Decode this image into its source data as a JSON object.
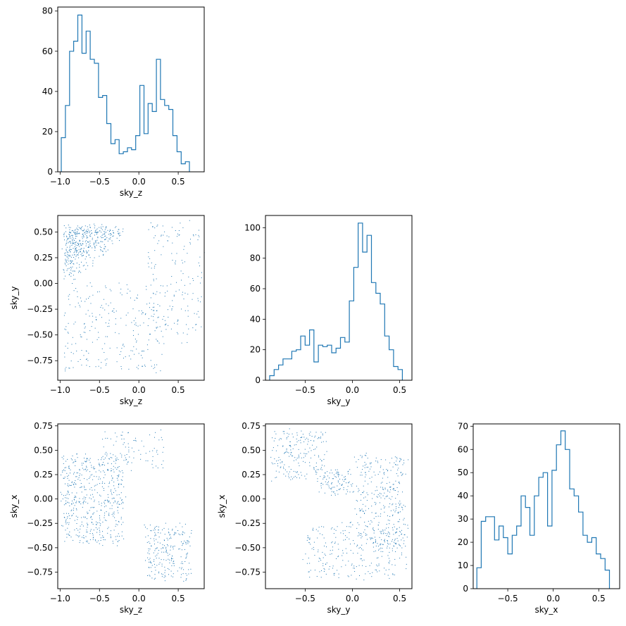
{
  "chart_data": [
    {
      "type": "histogram",
      "panel": "hist-sky-z",
      "xlabel": "sky_z",
      "xlim": [
        -1.03,
        0.83
      ],
      "ylim": [
        0,
        82
      ],
      "xticks": [
        -1.0,
        -0.5,
        0.0,
        0.5
      ],
      "xtick_labels": [
        "−1.0",
        "−0.5",
        "0.0",
        "0.5"
      ],
      "yticks": [
        0,
        20,
        40,
        60,
        80
      ],
      "ytick_labels": [
        "0",
        "20",
        "40",
        "60",
        "80"
      ],
      "bin_start": -0.985,
      "bin_width": 0.0525,
      "counts": [
        17,
        33,
        60,
        65,
        78,
        59,
        70,
        56,
        54,
        37,
        38,
        24,
        14,
        16,
        9,
        10,
        12,
        11,
        18,
        43,
        19,
        34,
        30,
        56,
        36,
        33,
        31,
        18,
        10,
        4,
        5
      ]
    },
    {
      "type": "histogram",
      "panel": "hist-sky-y",
      "xlabel": "sky_y",
      "xlim": [
        -0.92,
        0.63
      ],
      "ylim": [
        0,
        108
      ],
      "xticks": [
        -0.5,
        0.0,
        0.5
      ],
      "xtick_labels": [
        "−0.5",
        "0.0",
        "0.5"
      ],
      "yticks": [
        0,
        20,
        40,
        60,
        80,
        100
      ],
      "ytick_labels": [
        "0",
        "20",
        "40",
        "60",
        "80",
        "100"
      ],
      "bin_start": -0.875,
      "bin_width": 0.0468,
      "counts": [
        3,
        7,
        10,
        14,
        14,
        19,
        20,
        29,
        23,
        33,
        12,
        23,
        22,
        23,
        18,
        21,
        28,
        25,
        52,
        74,
        103,
        84,
        95,
        64,
        57,
        50,
        29,
        20,
        9,
        7
      ]
    },
    {
      "type": "histogram",
      "panel": "hist-sky-x",
      "xlabel": "sky_x",
      "xlim": [
        -0.88,
        0.73
      ],
      "ylim": [
        0,
        71
      ],
      "xticks": [
        -0.5,
        0.0,
        0.5
      ],
      "xtick_labels": [
        "−0.5",
        "0.0",
        "0.5"
      ],
      "yticks": [
        0,
        10,
        20,
        30,
        40,
        50,
        60,
        70
      ],
      "ytick_labels": [
        "0",
        "10",
        "20",
        "30",
        "40",
        "50",
        "60",
        "70"
      ],
      "bin_start": -0.84,
      "bin_width": 0.0486,
      "counts": [
        9,
        29,
        31,
        31,
        21,
        27,
        22,
        15,
        23,
        27,
        40,
        35,
        23,
        40,
        48,
        50,
        27,
        51,
        62,
        68,
        60,
        43,
        40,
        33,
        23,
        20,
        22,
        15,
        13,
        8
      ]
    },
    {
      "type": "scatter",
      "panel": "scatter-z-y",
      "xlabel": "sky_z",
      "ylabel": "sky_y",
      "xlim": [
        -1.03,
        0.83
      ],
      "ylim": [
        -0.94,
        0.66
      ],
      "xticks": [
        -1.0,
        -0.5,
        0.0,
        0.5
      ],
      "xtick_labels": [
        "−1.0",
        "−0.5",
        "0.0",
        "0.5"
      ],
      "yticks": [
        -0.75,
        -0.5,
        -0.25,
        0.0,
        0.25,
        0.5
      ],
      "ytick_labels": [
        "−0.75",
        "−0.50",
        "−0.25",
        "0.00",
        "0.25",
        "0.50"
      ],
      "clusters": [
        {
          "n": 420,
          "x_range": [
            -0.95,
            -0.2
          ],
          "y_range": [
            0.05,
            0.55
          ],
          "triangle": true
        },
        {
          "n": 160,
          "x_range": [
            0.1,
            0.8
          ],
          "y_range": [
            -0.55,
            0.6
          ]
        },
        {
          "n": 260,
          "x_range": [
            -0.95,
            0.35
          ],
          "y_range": [
            -0.85,
            0.0
          ]
        }
      ]
    },
    {
      "type": "scatter",
      "panel": "scatter-z-x",
      "xlabel": "sky_z",
      "ylabel": "sky_x",
      "xlim": [
        -1.03,
        0.83
      ],
      "ylim": [
        -0.92,
        0.77
      ],
      "xticks": [
        -1.0,
        -0.5,
        0.0,
        0.5
      ],
      "xtick_labels": [
        "−1.0",
        "−0.5",
        "0.0",
        "0.5"
      ],
      "yticks": [
        -0.75,
        -0.5,
        -0.25,
        0.0,
        0.25,
        0.5,
        0.75
      ],
      "ytick_labels": [
        "−0.75",
        "−0.50",
        "−0.25",
        "0.00",
        "0.25",
        "0.50",
        "0.75"
      ],
      "clusters": [
        {
          "n": 520,
          "x_range": [
            -0.98,
            -0.2
          ],
          "y_range": [
            -0.45,
            0.45
          ]
        },
        {
          "n": 90,
          "x_range": [
            -0.45,
            0.3
          ],
          "y_range": [
            0.3,
            0.7
          ]
        },
        {
          "n": 230,
          "x_range": [
            0.1,
            0.65
          ],
          "y_range": [
            -0.82,
            -0.25
          ]
        }
      ]
    },
    {
      "type": "scatter",
      "panel": "scatter-y-x",
      "xlabel": "sky_y",
      "ylabel": "sky_x",
      "xlim": [
        -0.92,
        0.63
      ],
      "ylim": [
        -0.92,
        0.77
      ],
      "xticks": [
        -0.5,
        0.0,
        0.5
      ],
      "xtick_labels": [
        "−0.5",
        "0.0",
        "0.5"
      ],
      "yticks": [
        -0.75,
        -0.5,
        -0.25,
        0.0,
        0.25,
        0.5,
        0.75
      ],
      "ytick_labels": [
        "−0.75",
        "−0.50",
        "−0.25",
        "0.00",
        "0.25",
        "0.50",
        "0.75"
      ],
      "clusters": [
        {
          "n": 200,
          "x_range": [
            -0.85,
            -0.3
          ],
          "y_range": [
            0.2,
            0.7
          ]
        },
        {
          "n": 100,
          "x_range": [
            -0.35,
            0.0
          ],
          "y_range": [
            0.05,
            0.3
          ]
        },
        {
          "n": 330,
          "x_range": [
            0.05,
            0.55
          ],
          "y_range": [
            -0.5,
            0.45
          ]
        },
        {
          "n": 250,
          "x_range": [
            -0.5,
            0.6
          ],
          "y_range": [
            -0.8,
            -0.25
          ]
        }
      ]
    }
  ],
  "colors": {
    "series": "#1f77b4",
    "axes": "#000000",
    "background": "#ffffff"
  }
}
